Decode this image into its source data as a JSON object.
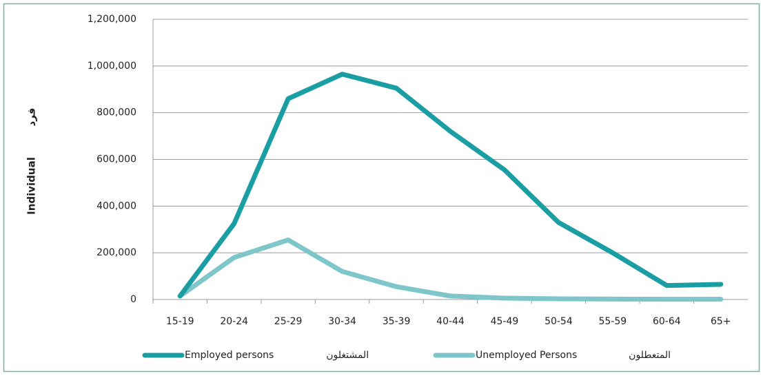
{
  "chart_data": {
    "type": "line",
    "y_label": "Individual",
    "y_label_ar": "فرد",
    "categories": [
      "15-19",
      "20-24",
      "25-29",
      "30-34",
      "35-39",
      "40-44",
      "45-49",
      "50-54",
      "55-59",
      "60-64",
      "65+"
    ],
    "series": [
      {
        "name": "Employed persons",
        "name_ar": "المشتغلون",
        "color": "#1a9ea4",
        "values": [
          15000,
          325000,
          860000,
          965000,
          905000,
          720000,
          555000,
          330000,
          200000,
          60000,
          65000
        ]
      },
      {
        "name": "Unemployed Persons",
        "name_ar": "المتعطلون",
        "color": "#7fc6ca",
        "values": [
          15000,
          180000,
          255000,
          120000,
          55000,
          15000,
          6000,
          3000,
          2000,
          1000,
          1000
        ]
      }
    ],
    "ylim": [
      0,
      1200000
    ],
    "yticks": [
      0,
      {
        "value": 200000,
        "label": "200,000"
      },
      {
        "value": 400000,
        "label": "400,000"
      },
      {
        "value": 600000,
        "label": "600,000"
      },
      {
        "value": 800000,
        "label": "800,000"
      },
      {
        "value": 1000000,
        "label": "1,000,000"
      },
      {
        "value": 1200000,
        "label": "1,200,000"
      }
    ],
    "grid": true,
    "legend": "bottom"
  }
}
